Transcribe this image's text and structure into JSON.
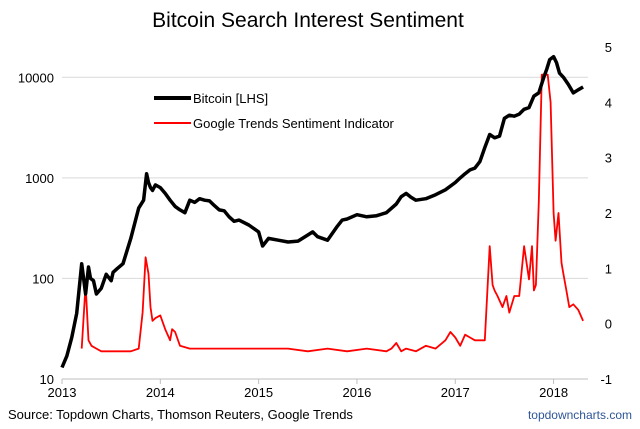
{
  "chart_data": {
    "type": "line",
    "title": "Bitcoin Search Interest Sentiment",
    "source": "Source: Topdown Charts, Thomson Reuters, Google Trends",
    "brand": "topdowncharts.com",
    "grid": true,
    "legend": {
      "placement": "top-left",
      "entries": [
        {
          "label": "Bitcoin [LHS]",
          "color": "#000000"
        },
        {
          "label": "Google Trends Sentiment Indicator",
          "color": "#ff0000"
        }
      ]
    },
    "x_axis": {
      "ticks": [
        "2013",
        "2014",
        "2015",
        "2016",
        "2017",
        "2018"
      ],
      "range": [
        2013.0,
        2018.35
      ]
    },
    "y_left": {
      "scale": "log",
      "range": [
        10,
        20000
      ],
      "ticks": [
        "10",
        "100",
        "1000",
        "10000"
      ],
      "tick_values": [
        10,
        100,
        1000,
        10000
      ]
    },
    "y_right": {
      "scale": "linear",
      "range": [
        -1,
        5
      ],
      "ticks": [
        "-1",
        "0",
        "1",
        "2",
        "3",
        "4",
        "5"
      ],
      "tick_values": [
        -1,
        0,
        1,
        2,
        3,
        4,
        5
      ]
    },
    "series": [
      {
        "name": "Bitcoin [LHS]",
        "axis": "left",
        "color": "#000000",
        "x": [
          2013.0,
          2013.05,
          2013.1,
          2013.15,
          2013.2,
          2013.24,
          2013.27,
          2013.29,
          2013.32,
          2013.35,
          2013.4,
          2013.45,
          2013.5,
          2013.52,
          2013.56,
          2013.62,
          2013.7,
          2013.78,
          2013.83,
          2013.86,
          2013.88,
          2013.9,
          2013.92,
          2013.95,
          2014.0,
          2014.05,
          2014.1,
          2014.15,
          2014.2,
          2014.25,
          2014.3,
          2014.35,
          2014.4,
          2014.45,
          2014.5,
          2014.55,
          2014.6,
          2014.65,
          2014.7,
          2014.75,
          2014.8,
          2014.9,
          2015.0,
          2015.04,
          2015.1,
          2015.2,
          2015.3,
          2015.4,
          2015.5,
          2015.55,
          2015.6,
          2015.7,
          2015.8,
          2015.85,
          2015.9,
          2016.0,
          2016.1,
          2016.2,
          2016.3,
          2016.4,
          2016.45,
          2016.5,
          2016.55,
          2016.6,
          2016.7,
          2016.8,
          2016.9,
          2017.0,
          2017.05,
          2017.1,
          2017.15,
          2017.2,
          2017.25,
          2017.3,
          2017.35,
          2017.4,
          2017.45,
          2017.5,
          2017.55,
          2017.6,
          2017.65,
          2017.7,
          2017.75,
          2017.8,
          2017.85,
          2017.9,
          2017.93,
          2017.96,
          2018.0,
          2018.03,
          2018.06,
          2018.1,
          2018.15,
          2018.2,
          2018.25,
          2018.3
        ],
        "y": [
          13,
          17,
          26,
          45,
          140,
          70,
          130,
          100,
          95,
          70,
          80,
          110,
          95,
          115,
          125,
          140,
          250,
          500,
          600,
          1100,
          900,
          800,
          750,
          850,
          800,
          700,
          600,
          520,
          480,
          450,
          600,
          570,
          620,
          600,
          590,
          530,
          480,
          470,
          410,
          370,
          380,
          340,
          290,
          210,
          250,
          240,
          230,
          235,
          270,
          290,
          260,
          240,
          330,
          380,
          390,
          430,
          410,
          420,
          450,
          550,
          650,
          700,
          640,
          600,
          620,
          680,
          760,
          900,
          1000,
          1100,
          1200,
          1250,
          1450,
          2000,
          2700,
          2500,
          2600,
          3900,
          4200,
          4100,
          4300,
          4800,
          5000,
          6500,
          7000,
          10000,
          12000,
          15000,
          16000,
          14000,
          11000,
          10000,
          8500,
          7000,
          7500,
          8000
        ]
      },
      {
        "name": "Google Trends Sentiment Indicator",
        "axis": "right",
        "color": "#ff0000",
        "x": [
          2013.2,
          2013.24,
          2013.27,
          2013.3,
          2013.35,
          2013.4,
          2013.5,
          2013.6,
          2013.7,
          2013.78,
          2013.82,
          2013.85,
          2013.88,
          2013.9,
          2013.92,
          2013.95,
          2014.0,
          2014.05,
          2014.1,
          2014.12,
          2014.15,
          2014.2,
          2014.3,
          2014.5,
          2014.7,
          2014.9,
          2015.1,
          2015.3,
          2015.5,
          2015.7,
          2015.9,
          2016.1,
          2016.3,
          2016.35,
          2016.4,
          2016.45,
          2016.5,
          2016.6,
          2016.7,
          2016.8,
          2016.9,
          2016.95,
          2017.0,
          2017.05,
          2017.1,
          2017.15,
          2017.2,
          2017.25,
          2017.3,
          2017.35,
          2017.38,
          2017.4,
          2017.43,
          2017.48,
          2017.52,
          2017.55,
          2017.6,
          2017.65,
          2017.7,
          2017.75,
          2017.78,
          2017.8,
          2017.82,
          2017.85,
          2017.88,
          2017.9,
          2017.94,
          2017.97,
          2018.0,
          2018.02,
          2018.05,
          2018.08,
          2018.1,
          2018.13,
          2018.16,
          2018.2,
          2018.25,
          2018.3
        ],
        "y": [
          -0.45,
          0.7,
          -0.3,
          -0.4,
          -0.45,
          -0.5,
          -0.5,
          -0.5,
          -0.5,
          -0.45,
          0.2,
          1.2,
          0.9,
          0.3,
          0.05,
          0.1,
          0.15,
          -0.1,
          -0.3,
          -0.1,
          -0.15,
          -0.4,
          -0.45,
          -0.45,
          -0.45,
          -0.45,
          -0.45,
          -0.45,
          -0.5,
          -0.45,
          -0.5,
          -0.45,
          -0.5,
          -0.45,
          -0.35,
          -0.5,
          -0.45,
          -0.5,
          -0.4,
          -0.45,
          -0.3,
          -0.15,
          -0.25,
          -0.4,
          -0.2,
          -0.25,
          -0.3,
          -0.3,
          -0.3,
          1.4,
          0.7,
          0.6,
          0.5,
          0.3,
          0.5,
          0.2,
          0.5,
          0.5,
          1.4,
          0.8,
          1.4,
          0.6,
          0.7,
          2.2,
          4.5,
          4.5,
          4.5,
          4.0,
          2.0,
          1.5,
          2.0,
          1.1,
          0.9,
          0.6,
          0.3,
          0.35,
          0.25,
          0.05
        ]
      }
    ]
  }
}
